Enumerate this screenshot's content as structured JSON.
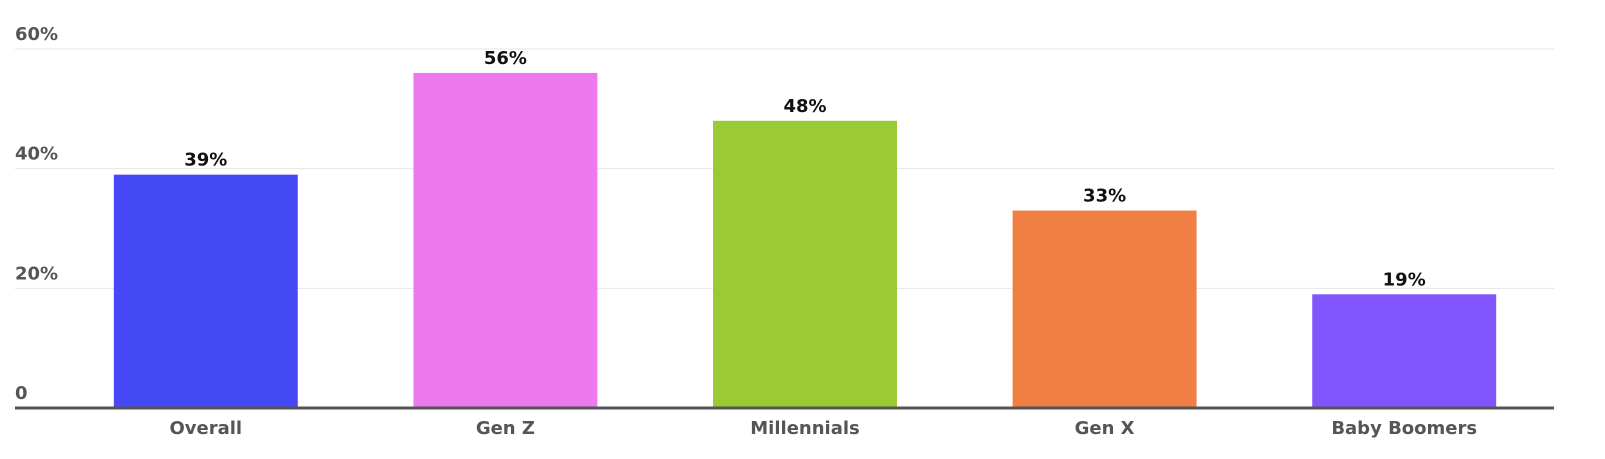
{
  "chart_data": {
    "type": "bar",
    "categories": [
      "Overall",
      "Gen Z",
      "Millennials",
      "Gen X",
      "Baby Boomers"
    ],
    "values": [
      39,
      56,
      48,
      33,
      19
    ],
    "value_labels": [
      "39%",
      "56%",
      "48%",
      "33%",
      "19%"
    ],
    "colors": [
      "#4449f5",
      "#ec79f0",
      "#9aca34",
      "#ef7f42",
      "#8155fd"
    ],
    "ylim": [
      0,
      60
    ],
    "yticks": [
      0,
      {
        "value": 20,
        "label": "20%"
      },
      {
        "value": 40,
        "label": "40%"
      },
      {
        "value": 60,
        "label": "60%"
      }
    ],
    "grid": true
  }
}
